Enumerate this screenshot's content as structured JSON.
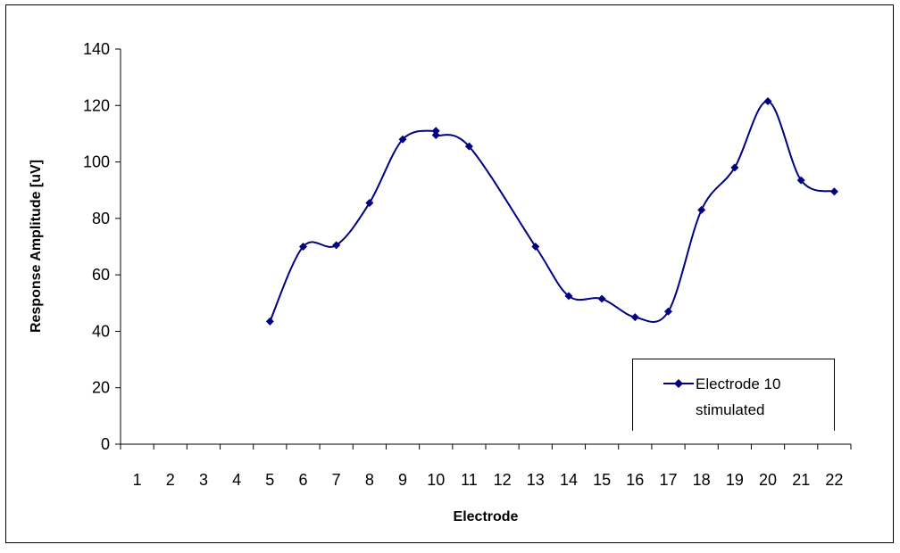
{
  "chart_data": {
    "type": "line",
    "title": "",
    "xlabel": "Electrode",
    "ylabel": "Response Amplitude [uV]",
    "categories": [
      "1",
      "2",
      "3",
      "4",
      "5",
      "6",
      "7",
      "8",
      "9",
      "10",
      "11",
      "12",
      "13",
      "14",
      "15",
      "16",
      "17",
      "18",
      "19",
      "20",
      "21",
      "22"
    ],
    "ylim": [
      0,
      140
    ],
    "yticks": [
      0,
      20,
      40,
      60,
      80,
      100,
      120,
      140
    ],
    "grid": false,
    "legend_position": "bottom-right",
    "series": [
      {
        "name": "Electrode 10 stimulated",
        "color": "#000080",
        "marker": "diamond",
        "smooth": true,
        "points": [
          {
            "x": 5,
            "y": 43.5
          },
          {
            "x": 6,
            "y": 70
          },
          {
            "x": 7,
            "y": 70.5
          },
          {
            "x": 8,
            "y": 85.5
          },
          {
            "x": 9,
            "y": 108
          },
          {
            "x": 10,
            "y": 111
          },
          {
            "x": 10,
            "y": 109.5
          },
          {
            "x": 11,
            "y": 105.5
          },
          {
            "x": 13,
            "y": 70
          },
          {
            "x": 14,
            "y": 52.5
          },
          {
            "x": 15,
            "y": 51.5
          },
          {
            "x": 16,
            "y": 45
          },
          {
            "x": 17,
            "y": 47
          },
          {
            "x": 18,
            "y": 83
          },
          {
            "x": 19,
            "y": 98
          },
          {
            "x": 20,
            "y": 121.5
          },
          {
            "x": 21,
            "y": 93.5
          },
          {
            "x": 22,
            "y": 89.5
          }
        ]
      }
    ]
  },
  "legend": {
    "line1": "Electrode 10",
    "line2": "stimulated"
  }
}
